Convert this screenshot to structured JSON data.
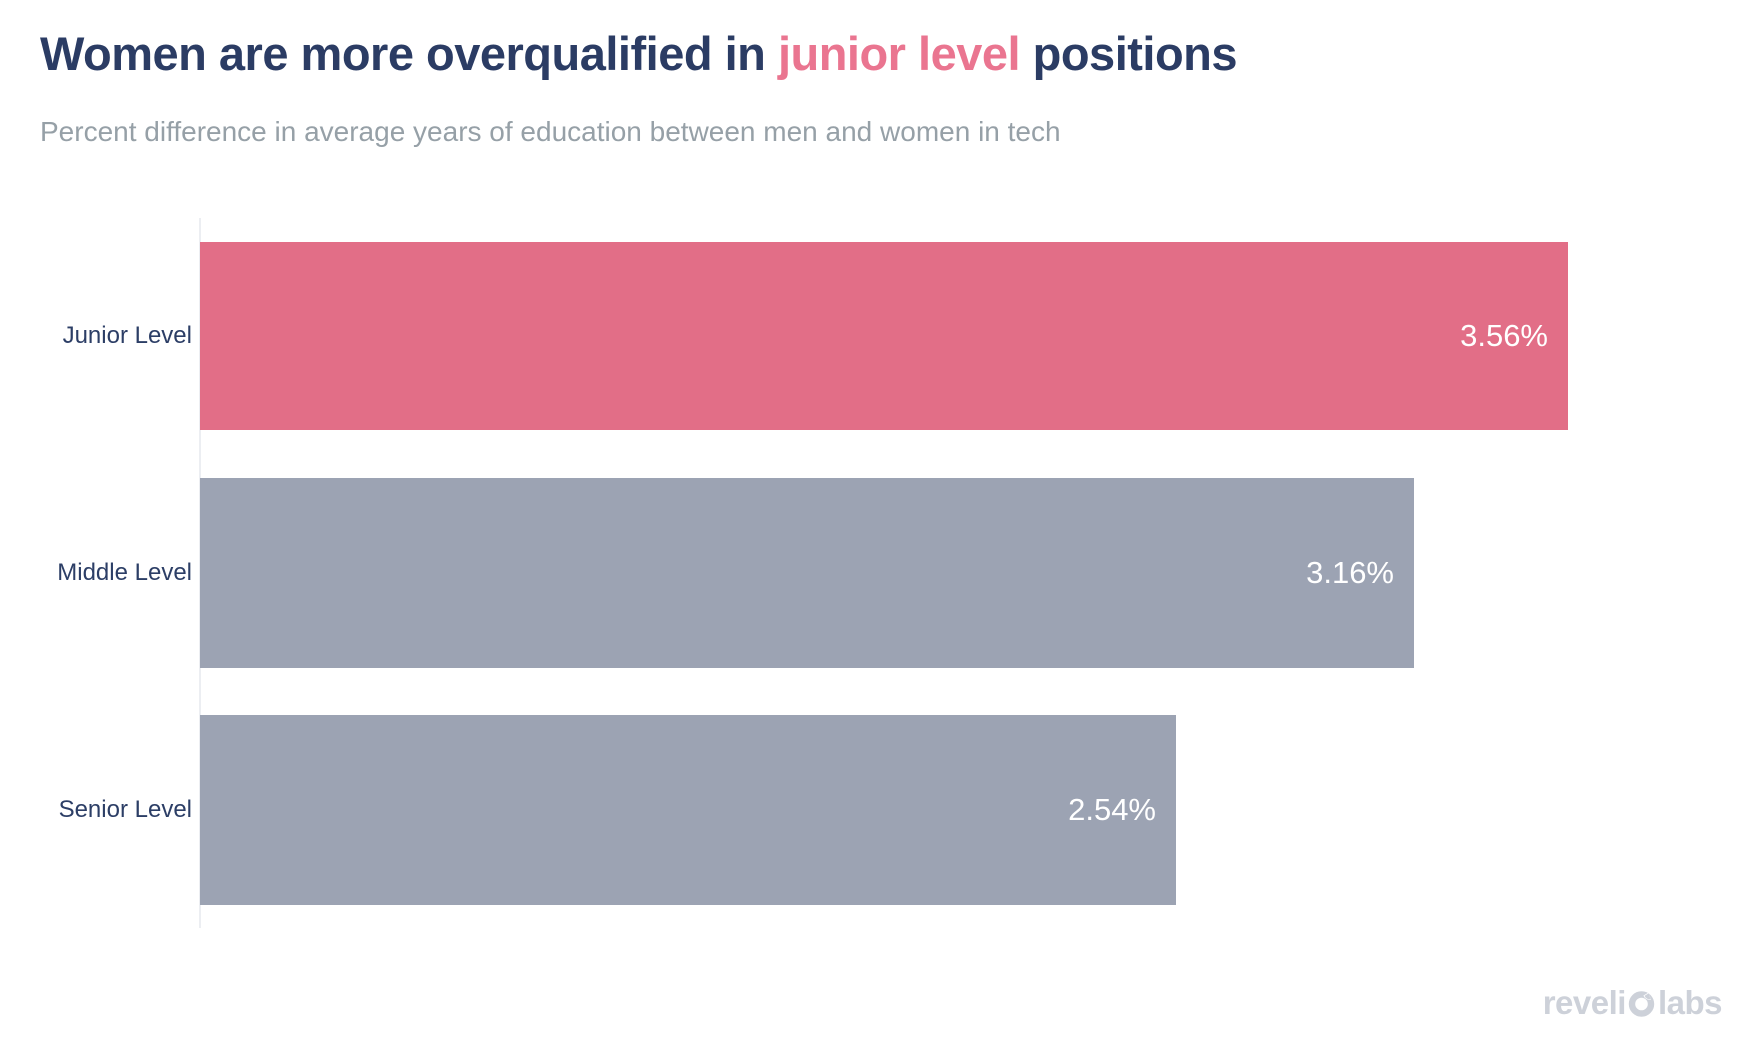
{
  "header": {
    "title_prefix": "Women are more overqualified in ",
    "title_highlight": "junior level",
    "title_suffix": " positions",
    "subtitle": "Percent difference in average years of education between men and women in tech"
  },
  "chart_data": {
    "type": "bar",
    "orientation": "horizontal",
    "title": "Women are more overqualified in junior level positions",
    "subtitle": "Percent difference in average years of education between men and women in tech",
    "categories": [
      "Junior Level",
      "Middle Level",
      "Senior Level"
    ],
    "values": [
      3.56,
      3.16,
      2.54
    ],
    "value_labels": [
      "3.56%",
      "3.16%",
      "2.54%"
    ],
    "highlight_index": 0,
    "xlabel": "",
    "ylabel": "",
    "xlim": [
      0,
      4.0
    ],
    "grid": false,
    "legend": false,
    "value_label_position": "inside-end"
  },
  "colors": {
    "bar_highlight": "#E26E87",
    "bar_muted": "#9CA3B3",
    "title_navy": "#2B3C64",
    "title_highlight": "#EA7590",
    "subtitle_gray": "#96A0A7",
    "axis_line": "#ECEEF2",
    "value_label": "#FFFFFF",
    "category_label": "#2C3E66",
    "logo_gray": "#CDD1D9"
  },
  "footer": {
    "brand_part1": "reveli",
    "brand_part2": "labs",
    "brand_full": "revelio labs"
  }
}
